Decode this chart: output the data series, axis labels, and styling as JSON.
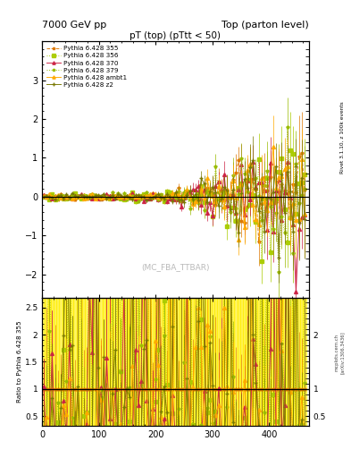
{
  "title_left": "7000 GeV pp",
  "title_right": "Top (parton level)",
  "plot_title": "pT (top) (pTtt < 50)",
  "watermark": "(MC_FBA_TTBAR)",
  "right_label_main": "Rivet 3.1.10, z 100k events",
  "right_label_ratio1": "mcplots.cern.ch",
  "right_label_ratio2": "[arXiv:1306.3436]",
  "ylabel_ratio": "Ratio to Pythia 6.428 355",
  "xlim": [
    0,
    470
  ],
  "ylim_main": [
    -2.6,
    4.0
  ],
  "ylim_ratio": [
    0.32,
    2.68
  ],
  "yticks_main": [
    -2,
    -1,
    0,
    1,
    2,
    3
  ],
  "yticks_ratio_left": [
    0.5,
    1.0,
    1.5,
    2.0,
    2.5
  ],
  "yticks_ratio_right": [
    0.5,
    1.0,
    2.0
  ],
  "series": [
    {
      "label": "Pythia 6.428 355",
      "color": "#dd7700",
      "marker": "*",
      "linestyle": "--",
      "lw": 0.8
    },
    {
      "label": "Pythia 6.428 356",
      "color": "#aacc00",
      "marker": "s",
      "linestyle": ":",
      "lw": 0.8
    },
    {
      "label": "Pythia 6.428 370",
      "color": "#cc2244",
      "marker": "^",
      "linestyle": "-",
      "lw": 0.8
    },
    {
      "label": "Pythia 6.428 379",
      "color": "#99bb00",
      "marker": "*",
      "linestyle": ":",
      "lw": 0.8
    },
    {
      "label": "Pythia 6.428 ambt1",
      "color": "#ffaa00",
      "marker": "^",
      "linestyle": "-",
      "lw": 0.9
    },
    {
      "label": "Pythia 6.428 z2",
      "color": "#777700",
      "marker": "+",
      "linestyle": "-",
      "lw": 0.8
    }
  ],
  "background_color": "#ffffff",
  "n_bins": 92,
  "x_min": 2.5,
  "x_max": 462.5,
  "bin_width": 5.0
}
